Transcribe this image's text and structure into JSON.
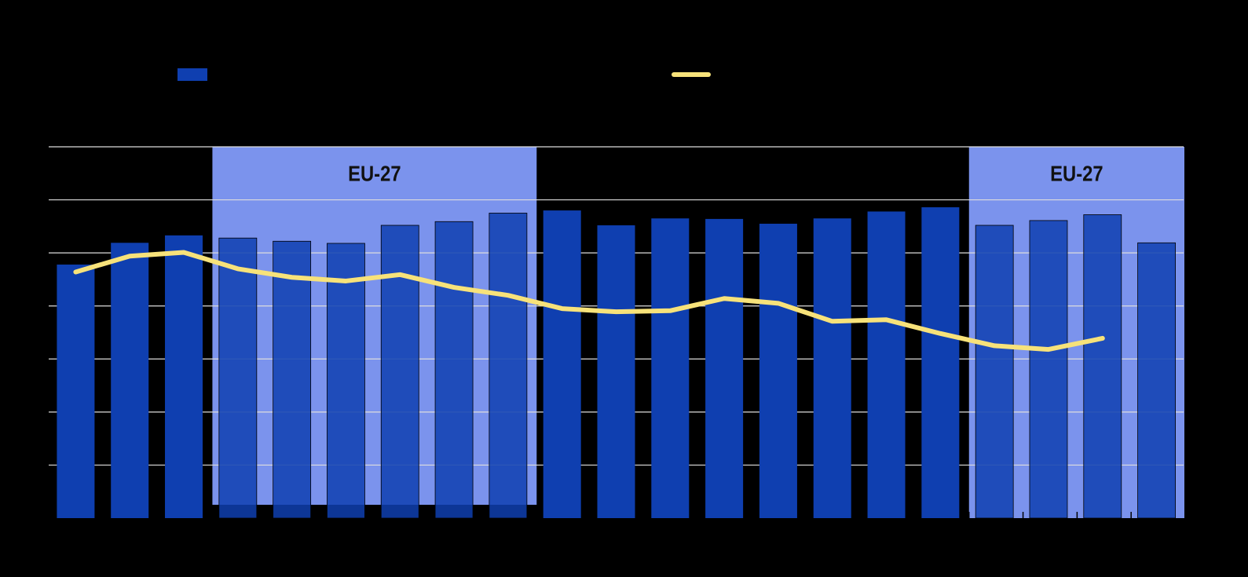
{
  "chart_data": {
    "type": "bar",
    "categories": [
      null,
      null,
      null,
      null,
      null,
      null,
      null,
      null,
      null,
      null,
      null,
      null,
      null,
      null,
      null,
      null,
      null,
      null,
      null,
      null,
      null
    ],
    "series": [
      {
        "type": "bar",
        "color": "#0f3fb0",
        "values": [
          4.78,
          5.19,
          5.33,
          5.28,
          5.22,
          5.18,
          5.52,
          5.59,
          5.75,
          5.8,
          5.52,
          5.65,
          5.64,
          5.55,
          5.65,
          5.78,
          5.86,
          5.52,
          5.61,
          5.72,
          5.19
        ]
      },
      {
        "type": "line",
        "color": "#f7e27a",
        "values": [
          4.64,
          4.94,
          5.01,
          4.7,
          4.54,
          4.47,
          4.59,
          4.35,
          4.2,
          3.95,
          3.89,
          3.91,
          4.14,
          4.05,
          3.71,
          3.74,
          3.48,
          3.25,
          3.18,
          3.39,
          null
        ]
      }
    ],
    "regions": [
      {
        "label": "EU-27",
        "from": 3,
        "to": 8,
        "color": "#7b93ed"
      },
      {
        "label": "EU-27",
        "from": 17,
        "to": 20,
        "color": "#7b93ed"
      }
    ],
    "ylim": [
      0,
      7
    ],
    "yticks": [
      1,
      2,
      3,
      4,
      5,
      6,
      7
    ],
    "grid": true
  }
}
